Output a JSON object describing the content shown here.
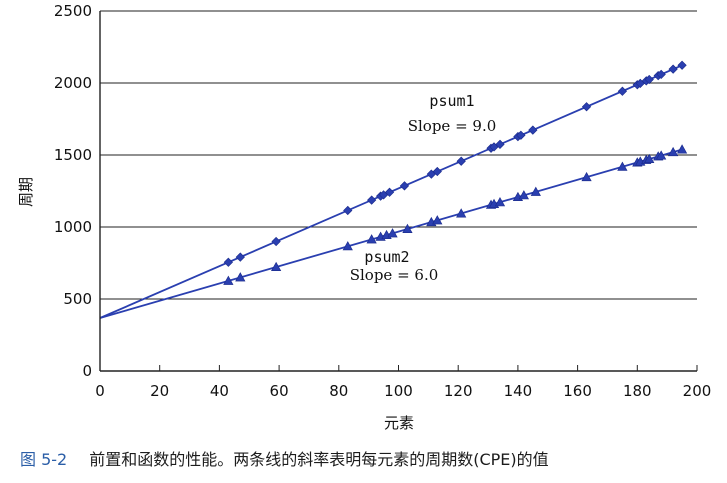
{
  "chart_data": {
    "type": "scatter",
    "xlabel": "元素",
    "ylabel": "周期",
    "xlim": [
      0,
      200
    ],
    "ylim": [
      0,
      2500
    ],
    "xticks": [
      0,
      20,
      40,
      60,
      80,
      100,
      120,
      140,
      160,
      180,
      200
    ],
    "yticks": [
      0,
      500,
      1000,
      1500,
      2000,
      2500
    ],
    "grid": "horizontal",
    "series": [
      {
        "name": "psum1",
        "annotation": "Slope = 9.0",
        "marker": "diamond",
        "color": "#2a3fb0",
        "fit": {
          "intercept": 368,
          "slope": 9.0
        },
        "x": [
          43,
          47,
          59,
          83,
          91,
          94,
          95,
          97,
          102,
          111,
          113,
          121,
          131,
          132,
          134,
          140,
          141,
          145,
          163,
          175,
          180,
          181,
          183,
          184,
          187,
          188,
          192,
          195
        ],
        "y": [
          755,
          791,
          899,
          1115,
          1187,
          1214,
          1223,
          1241,
          1286,
          1367,
          1385,
          1457,
          1547,
          1556,
          1574,
          1628,
          1637,
          1673,
          1835,
          1943,
          1988,
          1997,
          2015,
          2024,
          2051,
          2060,
          2096,
          2123
        ]
      },
      {
        "name": "psum2",
        "annotation": "Slope = 6.0",
        "marker": "triangle",
        "color": "#2a3fb0",
        "fit": {
          "intercept": 368,
          "slope": 6.0
        },
        "x": [
          43,
          47,
          59,
          83,
          91,
          94,
          96,
          98,
          103,
          111,
          113,
          121,
          131,
          132,
          134,
          140,
          142,
          146,
          163,
          175,
          180,
          181,
          183,
          184,
          187,
          188,
          192,
          195
        ],
        "y": [
          626,
          650,
          722,
          866,
          914,
          932,
          944,
          956,
          986,
          1034,
          1046,
          1094,
          1154,
          1160,
          1172,
          1208,
          1220,
          1244,
          1346,
          1418,
          1448,
          1454,
          1466,
          1472,
          1490,
          1496,
          1520,
          1538
        ]
      }
    ]
  },
  "caption": {
    "figure_number": "图 5-2",
    "text": "前置和函数的性能。两条线的斜率表明每元素的周期数(CPE)的值"
  }
}
